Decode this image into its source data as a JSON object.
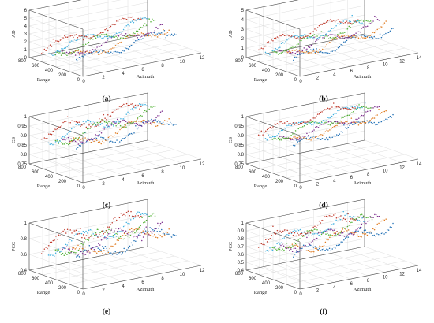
{
  "chart_data": [
    {
      "type": "scatter",
      "caption": "(a)",
      "zlabel": "AD",
      "xlabel": "Azimuth",
      "ylabel": "Range",
      "zlim": [
        0,
        6
      ],
      "zticks": [
        "0",
        "1",
        "2",
        "3",
        "4",
        "5",
        "6"
      ],
      "xlim": [
        0,
        12
      ],
      "xticks": [
        "0",
        "2",
        "4",
        "6",
        "8",
        "10",
        "12"
      ],
      "ylim": [
        0,
        800
      ],
      "yticks": [
        "0",
        "200",
        "400",
        "600",
        "800"
      ],
      "grid": true,
      "series_colors": [
        "#1f6fb5",
        "#e07b20",
        "#7e2f8e",
        "#4daf2f",
        "#3fb0e0",
        "#c0392b"
      ],
      "series_summary": {
        "count": 6,
        "base": 1.7,
        "amplitude": 0.55,
        "phase_offsets": [
          0,
          60,
          120,
          180,
          240,
          300
        ]
      }
    },
    {
      "type": "scatter",
      "caption": "(b)",
      "zlabel": "AD",
      "xlabel": "Azimuth",
      "ylabel": "Range",
      "zlim": [
        0,
        5
      ],
      "zticks": [
        "0",
        "1",
        "2",
        "3",
        "4",
        "5"
      ],
      "xlim": [
        0,
        14
      ],
      "xticks": [
        "0",
        "2",
        "4",
        "6",
        "8",
        "10",
        "12",
        "14"
      ],
      "ylim": [
        0,
        800
      ],
      "yticks": [
        "0",
        "200",
        "400",
        "600",
        "800"
      ],
      "grid": true,
      "series_colors": [
        "#1f6fb5",
        "#e07b20",
        "#7e2f8e",
        "#4daf2f",
        "#3fb0e0",
        "#c0392b"
      ],
      "series_summary": {
        "count": 6,
        "base": 1.6,
        "amplitude": 0.45,
        "phase_offsets": [
          0,
          60,
          120,
          180,
          240,
          300
        ]
      }
    },
    {
      "type": "scatter",
      "caption": "(c)",
      "zlabel": "CS",
      "xlabel": "Azimuth",
      "ylabel": "Range",
      "zlim": [
        0.75,
        1
      ],
      "zticks": [
        "0.75",
        "0.8",
        "0.85",
        "0.9",
        "0.95",
        "1"
      ],
      "xlim": [
        0,
        12
      ],
      "xticks": [
        "0",
        "2",
        "4",
        "6",
        "8",
        "10",
        "12"
      ],
      "ylim": [
        0,
        800
      ],
      "yticks": [
        "0",
        "200",
        "400",
        "600",
        "800"
      ],
      "grid": true,
      "series_colors": [
        "#1f6fb5",
        "#e07b20",
        "#7e2f8e",
        "#4daf2f",
        "#3fb0e0",
        "#c0392b"
      ],
      "series_summary": {
        "count": 6,
        "base": 0.92,
        "amplitude": 0.03,
        "phase_offsets": [
          0,
          60,
          120,
          180,
          240,
          300
        ]
      }
    },
    {
      "type": "scatter",
      "caption": "(d)",
      "zlabel": "CS",
      "xlabel": "Azimuth",
      "ylabel": "Range",
      "zlim": [
        0.75,
        1
      ],
      "zticks": [
        "0.75",
        "0.8",
        "0.85",
        "0.9",
        "0.95",
        "1"
      ],
      "xlim": [
        0,
        14
      ],
      "xticks": [
        "0",
        "2",
        "4",
        "6",
        "8",
        "10",
        "12",
        "14"
      ],
      "ylim": [
        0,
        800
      ],
      "yticks": [
        "0",
        "200",
        "400",
        "600",
        "800"
      ],
      "grid": true,
      "series_colors": [
        "#1f6fb5",
        "#e07b20",
        "#7e2f8e",
        "#4daf2f",
        "#3fb0e0",
        "#c0392b"
      ],
      "series_summary": {
        "count": 6,
        "base": 0.935,
        "amplitude": 0.02,
        "phase_offsets": [
          0,
          60,
          120,
          180,
          240,
          300
        ]
      }
    },
    {
      "type": "scatter",
      "caption": "(e)",
      "zlabel": "PCC",
      "xlabel": "Azimuth",
      "ylabel": "Range",
      "zlim": [
        0.4,
        1
      ],
      "zticks": [
        "0.4",
        "0.6",
        "0.8",
        "1"
      ],
      "xlim": [
        0,
        12
      ],
      "xticks": [
        "0",
        "2",
        "4",
        "6",
        "8",
        "10",
        "12"
      ],
      "ylim": [
        0,
        800
      ],
      "yticks": [
        "0",
        "200",
        "400",
        "600",
        "800"
      ],
      "grid": true,
      "series_colors": [
        "#1f6fb5",
        "#e07b20",
        "#7e2f8e",
        "#4daf2f",
        "#3fb0e0",
        "#c0392b"
      ],
      "series_summary": {
        "count": 6,
        "base": 0.76,
        "amplitude": 0.09,
        "phase_offsets": [
          0,
          60,
          120,
          180,
          240,
          300
        ]
      }
    },
    {
      "type": "scatter",
      "caption": "(f)",
      "zlabel": "PCC",
      "xlabel": "Azimuth",
      "ylabel": "Range",
      "zlim": [
        0.4,
        1
      ],
      "zticks": [
        "0.4",
        "0.5",
        "0.6",
        "0.7",
        "0.8",
        "0.9",
        "1"
      ],
      "xlim": [
        0,
        14
      ],
      "xticks": [
        "0",
        "2",
        "4",
        "6",
        "8",
        "10",
        "12",
        "14"
      ],
      "ylim": [
        0,
        800
      ],
      "yticks": [
        "0",
        "200",
        "400",
        "600",
        "800"
      ],
      "grid": true,
      "series_colors": [
        "#1f6fb5",
        "#e07b20",
        "#7e2f8e",
        "#4daf2f",
        "#3fb0e0",
        "#c0392b"
      ],
      "series_summary": {
        "count": 6,
        "base": 0.8,
        "amplitude": 0.07,
        "phase_offsets": [
          0,
          60,
          120,
          180,
          240,
          300
        ]
      }
    }
  ]
}
